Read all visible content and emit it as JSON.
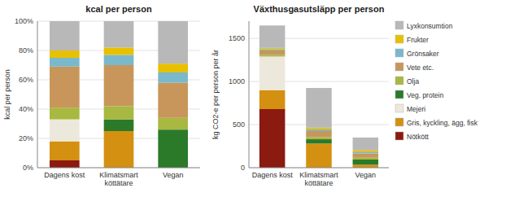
{
  "chart_data": [
    {
      "type": "bar",
      "stacked": true,
      "grid": true,
      "legend": false,
      "title": "kcal per person",
      "y_label": "kcal per person",
      "categories": [
        "Dagens kost",
        "Klimatsmart\nköttätare",
        "Vegan"
      ],
      "ylim": [
        0,
        100
      ],
      "yticks": [
        {
          "value": 0,
          "label": "0%"
        },
        {
          "value": 20,
          "label": "20%"
        },
        {
          "value": 40,
          "label": "40%"
        },
        {
          "value": 60,
          "label": "60%"
        },
        {
          "value": 80,
          "label": "80%"
        },
        {
          "value": 100,
          "label": "100%"
        }
      ],
      "series": [
        {
          "name": "Nötkött",
          "color": "#8b1a10",
          "values": [
            5.0,
            0.0,
            0.0
          ]
        },
        {
          "name": "Gris, kyckling, ägg, fisk",
          "color": "#d49010",
          "values": [
            13.0,
            25.0,
            0.0
          ]
        },
        {
          "name": "Mejeri",
          "color": "#ede8dc",
          "values": [
            15.0,
            0.0,
            0.0
          ]
        },
        {
          "name": "Veg. protein",
          "color": "#2a7a2a",
          "values": [
            0.0,
            8.0,
            26.0
          ]
        },
        {
          "name": "Olja",
          "color": "#a8b840",
          "values": [
            8.0,
            9.0,
            8.0
          ]
        },
        {
          "name": "Vete etc.",
          "color": "#c8965a",
          "values": [
            28.0,
            28.0,
            24.0
          ]
        },
        {
          "name": "Grönsaker",
          "color": "#7ab8cc",
          "values": [
            6.0,
            7.0,
            7.0
          ]
        },
        {
          "name": "Frukter",
          "color": "#e8c000",
          "values": [
            5.0,
            5.0,
            6.0
          ]
        },
        {
          "name": "Lyxkonsumtion",
          "color": "#b8b8b8",
          "values": [
            20.0,
            18.0,
            29.0
          ]
        }
      ]
    },
    {
      "type": "bar",
      "stacked": true,
      "grid": true,
      "legend": "right",
      "title": "Växthusgasutsläpp per person",
      "y_label": "kg CO2-e per person per år",
      "categories": [
        "Dagens kost",
        "Klimatsmart\nköttätare",
        "Vegan"
      ],
      "ylim": [
        0,
        1700
      ],
      "yticks": [
        0,
        500,
        1000,
        1500
      ],
      "series": [
        {
          "name": "Nötkött",
          "color": "#8b1a10",
          "values": [
            680.0,
            0.0,
            0.0
          ]
        },
        {
          "name": "Gris, kyckling, ägg, fisk",
          "color": "#d49010",
          "values": [
            220.0,
            280.0,
            35.0
          ]
        },
        {
          "name": "Mejeri",
          "color": "#ede8dc",
          "values": [
            390.0,
            0.0,
            0.0
          ]
        },
        {
          "name": "Veg. protein",
          "color": "#2a7a2a",
          "values": [
            0.0,
            50.0,
            60.0
          ]
        },
        {
          "name": "Olja",
          "color": "#a8b840",
          "values": [
            20.0,
            25.0,
            20.0
          ]
        },
        {
          "name": "Vete etc.",
          "color": "#c8965a",
          "values": [
            50.0,
            70.0,
            50.0
          ]
        },
        {
          "name": "Grönsaker",
          "color": "#7ab8cc",
          "values": [
            15.0,
            20.0,
            15.0
          ]
        },
        {
          "name": "Frukter",
          "color": "#e8c000",
          "values": [
            15.0,
            20.0,
            20.0
          ]
        },
        {
          "name": "Lyxkonsumtion",
          "color": "#b8b8b8",
          "values": [
            260.0,
            460.0,
            150.0
          ]
        }
      ]
    }
  ]
}
